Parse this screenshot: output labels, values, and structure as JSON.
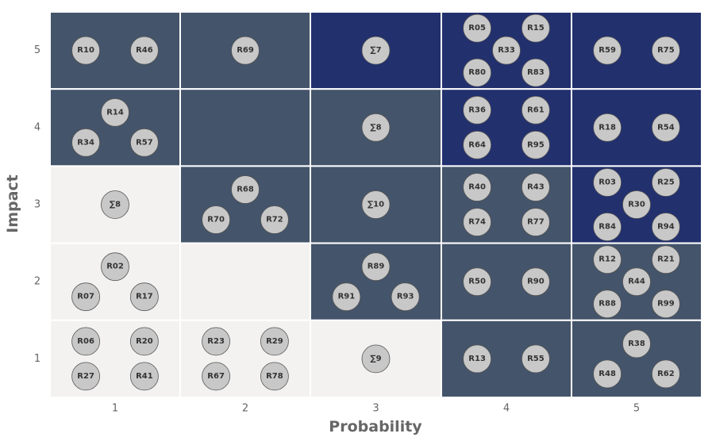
{
  "chart_data": {
    "type": "heatmap",
    "title": "",
    "xlabel": "Probability",
    "ylabel": "Impact",
    "x_categories": [
      "1",
      "2",
      "3",
      "4",
      "5"
    ],
    "y_categories": [
      "1",
      "2",
      "3",
      "4",
      "5"
    ],
    "colors": {
      "low": "#f3f2f1",
      "medium": "#44546a",
      "high": "#22306e",
      "bubble_fill": "#c8c8c8",
      "bubble_stroke": "#555555"
    },
    "cells": [
      {
        "probability": 1,
        "impact": 5,
        "level": "medium",
        "items": [
          "R10",
          "R46"
        ]
      },
      {
        "probability": 2,
        "impact": 5,
        "level": "medium",
        "items": [
          "R69"
        ]
      },
      {
        "probability": 3,
        "impact": 5,
        "level": "high",
        "items": [
          "∑7"
        ]
      },
      {
        "probability": 4,
        "impact": 5,
        "level": "high",
        "items": [
          "R05",
          "R15",
          "R33",
          "R80",
          "R83"
        ]
      },
      {
        "probability": 5,
        "impact": 5,
        "level": "high",
        "items": [
          "R59",
          "R75"
        ]
      },
      {
        "probability": 1,
        "impact": 4,
        "level": "medium",
        "items": [
          "R14",
          "R34",
          "R57"
        ]
      },
      {
        "probability": 2,
        "impact": 4,
        "level": "medium",
        "items": []
      },
      {
        "probability": 3,
        "impact": 4,
        "level": "medium",
        "items": [
          "∑8"
        ]
      },
      {
        "probability": 4,
        "impact": 4,
        "level": "high",
        "items": [
          "R36",
          "R61",
          "R64",
          "R95"
        ]
      },
      {
        "probability": 5,
        "impact": 4,
        "level": "high",
        "items": [
          "R18",
          "R54"
        ]
      },
      {
        "probability": 1,
        "impact": 3,
        "level": "low",
        "items": [
          "∑8"
        ]
      },
      {
        "probability": 2,
        "impact": 3,
        "level": "medium",
        "items": [
          "R68",
          "R70",
          "R72"
        ]
      },
      {
        "probability": 3,
        "impact": 3,
        "level": "medium",
        "items": [
          "∑10"
        ]
      },
      {
        "probability": 4,
        "impact": 3,
        "level": "medium",
        "items": [
          "R40",
          "R43",
          "R74",
          "R77"
        ]
      },
      {
        "probability": 5,
        "impact": 3,
        "level": "high",
        "items": [
          "R03",
          "R25",
          "R30",
          "R84",
          "R94"
        ]
      },
      {
        "probability": 1,
        "impact": 2,
        "level": "low",
        "items": [
          "R02",
          "R07",
          "R17"
        ]
      },
      {
        "probability": 2,
        "impact": 2,
        "level": "low",
        "items": []
      },
      {
        "probability": 3,
        "impact": 2,
        "level": "medium",
        "items": [
          "R89",
          "R91",
          "R93"
        ]
      },
      {
        "probability": 4,
        "impact": 2,
        "level": "medium",
        "items": [
          "R50",
          "R90"
        ]
      },
      {
        "probability": 5,
        "impact": 2,
        "level": "medium",
        "items": [
          "R12",
          "R21",
          "R44",
          "R88",
          "R99"
        ]
      },
      {
        "probability": 1,
        "impact": 1,
        "level": "low",
        "items": [
          "R06",
          "R20",
          "R27",
          "R41"
        ]
      },
      {
        "probability": 2,
        "impact": 1,
        "level": "low",
        "items": [
          "R23",
          "R29",
          "R67",
          "R78"
        ]
      },
      {
        "probability": 3,
        "impact": 1,
        "level": "low",
        "items": [
          "∑9"
        ]
      },
      {
        "probability": 4,
        "impact": 1,
        "level": "medium",
        "items": [
          "R13",
          "R55"
        ]
      },
      {
        "probability": 5,
        "impact": 1,
        "level": "medium",
        "items": [
          "R38",
          "R48",
          "R62"
        ]
      }
    ]
  }
}
